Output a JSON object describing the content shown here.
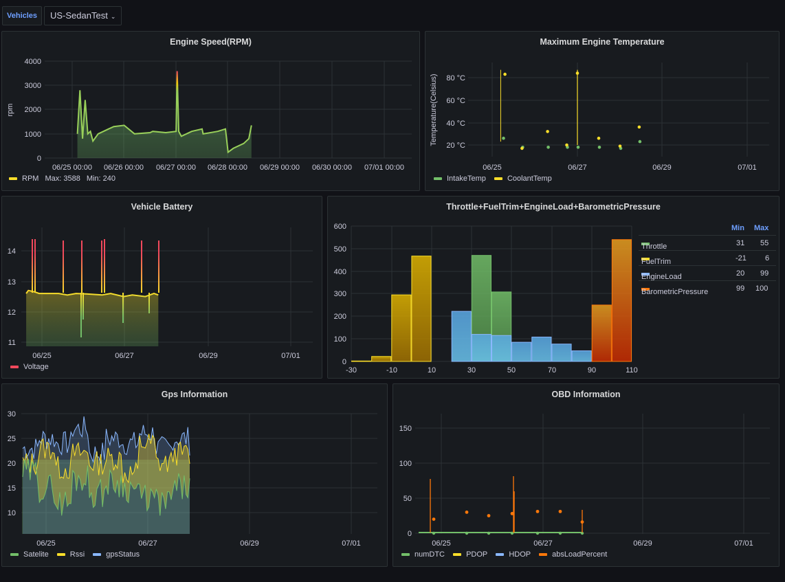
{
  "topbar": {
    "variable_label": "Vehicles",
    "variable_value": "US-SedanTest"
  },
  "colors": {
    "green": "#73bf69",
    "yellow": "#fade2a",
    "blue": "#8ab8ff",
    "orange": "#ff780a",
    "red": "#f2495c",
    "background": "#111217",
    "panel": "#181b1f"
  },
  "panels": {
    "rpm": {
      "title": "Engine Speed(RPM)",
      "ylabel": "rpm",
      "legend": {
        "name": "RPM",
        "max": "Max: 3588",
        "min": "Min: 240"
      }
    },
    "temp": {
      "title": "Maximum Engine Temperature",
      "ylabel": "Temperature(Celsius)",
      "legend": [
        "IntakeTemp",
        "CoolantTemp"
      ]
    },
    "battery": {
      "title": "Vehicle Battery",
      "legend": [
        "Voltage"
      ]
    },
    "throttle": {
      "title": "Throttle+FuelTrim+EngineLoad+BarometricPressure",
      "legend_header": {
        "min": "Min",
        "max": "Max"
      },
      "legend": [
        {
          "name": "Throttle",
          "min": "31",
          "max": "55"
        },
        {
          "name": "FuelTrim",
          "min": "-21",
          "max": "6"
        },
        {
          "name": "EngineLoad",
          "min": "20",
          "max": "99"
        },
        {
          "name": "BarometricPressure",
          "min": "99",
          "max": "100"
        }
      ]
    },
    "gps": {
      "title": "Gps Information",
      "legend": [
        "Satelite",
        "Rssi",
        "gpsStatus"
      ]
    },
    "obd": {
      "title": "OBD Information",
      "legend": [
        "numDTC",
        "PDOP",
        "HDOP",
        "absLoadPercent"
      ]
    }
  },
  "chart_data": [
    {
      "type": "line",
      "title": "Engine Speed(RPM)",
      "ylabel": "rpm",
      "ylim": [
        0,
        4000
      ],
      "yticks": [
        "0",
        "1000",
        "2000",
        "3000",
        "4000"
      ],
      "xticks": [
        "06/25 00:00",
        "06/26 00:00",
        "06/27 00:00",
        "06/28 00:00",
        "06/29 00:00",
        "06/30 00:00",
        "07/01 00:00"
      ],
      "x": [
        0.1,
        0.15,
        0.2,
        0.25,
        0.3,
        0.35,
        0.4,
        0.5,
        0.7,
        0.8,
        1.0,
        1.2,
        1.5,
        1.55,
        1.8,
        2.0,
        2.02,
        2.05,
        2.1,
        2.3,
        2.5,
        2.52,
        2.8,
        2.95,
        3.0,
        3.1,
        3.3,
        3.4,
        3.45
      ],
      "series": [
        {
          "name": "RPM",
          "values": [
            1000,
            2800,
            800,
            2400,
            1000,
            1100,
            700,
            1000,
            1200,
            1300,
            1350,
            1000,
            1050,
            1100,
            1050,
            1100,
            3588,
            1100,
            900,
            1100,
            1200,
            1000,
            1100,
            1200,
            240,
            400,
            600,
            800,
            1350
          ]
        }
      ]
    },
    {
      "type": "scatter",
      "title": "Maximum Engine Temperature",
      "ylabel": "Temperature(Celsius)",
      "yticks": [
        "20 °C",
        "40 °C",
        "60 °C",
        "80 °C"
      ],
      "xticks": [
        "06/25",
        "06/27",
        "06/29",
        "07/01"
      ],
      "series": [
        {
          "name": "IntakeTemp",
          "x": [
            0.25,
            0.7,
            1.3,
            1.75,
            2.0,
            2.5,
            3.0,
            3.45
          ],
          "values": [
            26,
            18,
            18,
            18,
            18,
            18,
            17,
            23
          ]
        },
        {
          "name": "CoolantTemp",
          "x": [
            0.3,
            0.7,
            1.3,
            1.75,
            2.0,
            2.5,
            3.0,
            3.45
          ],
          "values": [
            83,
            17,
            32,
            20,
            84,
            26,
            19,
            36
          ]
        }
      ]
    },
    {
      "type": "line",
      "title": "Vehicle Battery",
      "yticks": [
        "11",
        "12",
        "13",
        "14"
      ],
      "xticks": [
        "06/25",
        "06/27",
        "06/29",
        "07/01"
      ],
      "x": [
        0.05,
        0.1,
        0.25,
        0.35,
        0.5,
        0.8,
        1.0,
        1.2,
        1.5,
        1.8,
        2.0,
        2.3,
        2.5,
        2.8,
        3.0,
        3.1
      ],
      "series": [
        {
          "name": "Voltage",
          "values": [
            12.6,
            12.7,
            12.65,
            12.6,
            12.6,
            12.6,
            12.55,
            12.6,
            12.58,
            12.55,
            12.6,
            12.5,
            12.55,
            12.5,
            12.6,
            12.55
          ]
        }
      ]
    },
    {
      "type": "bar",
      "title": "Throttle+FuelTrim+EngineLoad+BarometricPressure",
      "ylim": [
        0,
        600
      ],
      "xticks": [
        "-30",
        "-10",
        "10",
        "30",
        "50",
        "70",
        "90",
        "110"
      ],
      "yticks": [
        "0",
        "100",
        "200",
        "300",
        "400",
        "500",
        "600"
      ],
      "bin_width": 10,
      "bins_start": [
        -30,
        -20,
        -10,
        0,
        20,
        30,
        40,
        50,
        60,
        70,
        80,
        90,
        100
      ],
      "series": [
        {
          "name": "FuelTrim",
          "values": [
            2,
            22,
            295,
            467,
            0,
            0,
            0,
            0,
            0,
            0,
            0,
            0,
            0
          ]
        },
        {
          "name": "Throttle",
          "values": [
            0,
            0,
            0,
            0,
            0,
            470,
            308,
            0,
            0,
            0,
            0,
            0,
            0
          ]
        },
        {
          "name": "EngineLoad",
          "values": [
            0,
            0,
            0,
            0,
            222,
            120,
            115,
            85,
            108,
            77,
            47,
            0,
            0
          ]
        },
        {
          "name": "BarometricPressure",
          "values": [
            0,
            0,
            0,
            0,
            0,
            0,
            0,
            0,
            0,
            0,
            0,
            250,
            540
          ]
        }
      ]
    },
    {
      "type": "area",
      "title": "Gps Information",
      "yticks": [
        "10",
        "15",
        "20",
        "25",
        "30"
      ],
      "xticks": [
        "06/25",
        "06/27",
        "06/29",
        "07/01"
      ],
      "series": [
        {
          "name": "Satelite",
          "values": [
            18,
            15,
            12,
            17,
            14,
            16,
            15,
            13,
            12,
            15,
            16
          ]
        },
        {
          "name": "Rssi",
          "values": [
            20,
            23,
            19,
            22,
            20,
            21,
            18,
            24,
            20,
            22,
            21
          ]
        },
        {
          "name": "gpsStatus",
          "values": [
            23,
            25,
            24,
            27,
            22,
            25,
            24,
            26,
            23,
            25,
            24
          ]
        }
      ]
    },
    {
      "type": "line",
      "title": "OBD Information",
      "yticks": [
        "0",
        "50",
        "100",
        "150"
      ],
      "xticks": [
        "06/25",
        "06/27",
        "06/29",
        "07/01"
      ],
      "series": [
        {
          "name": "numDTC",
          "values": [
            0,
            0,
            0,
            0,
            0,
            0,
            0
          ]
        },
        {
          "name": "PDOP",
          "values": [
            1,
            1,
            1,
            1,
            1,
            1,
            1
          ]
        },
        {
          "name": "HDOP",
          "values": [
            1,
            1,
            1,
            1,
            1,
            1,
            1
          ]
        },
        {
          "name": "absLoadPercent",
          "values": [
            20,
            30,
            25,
            28,
            31,
            31,
            16
          ]
        }
      ]
    }
  ]
}
